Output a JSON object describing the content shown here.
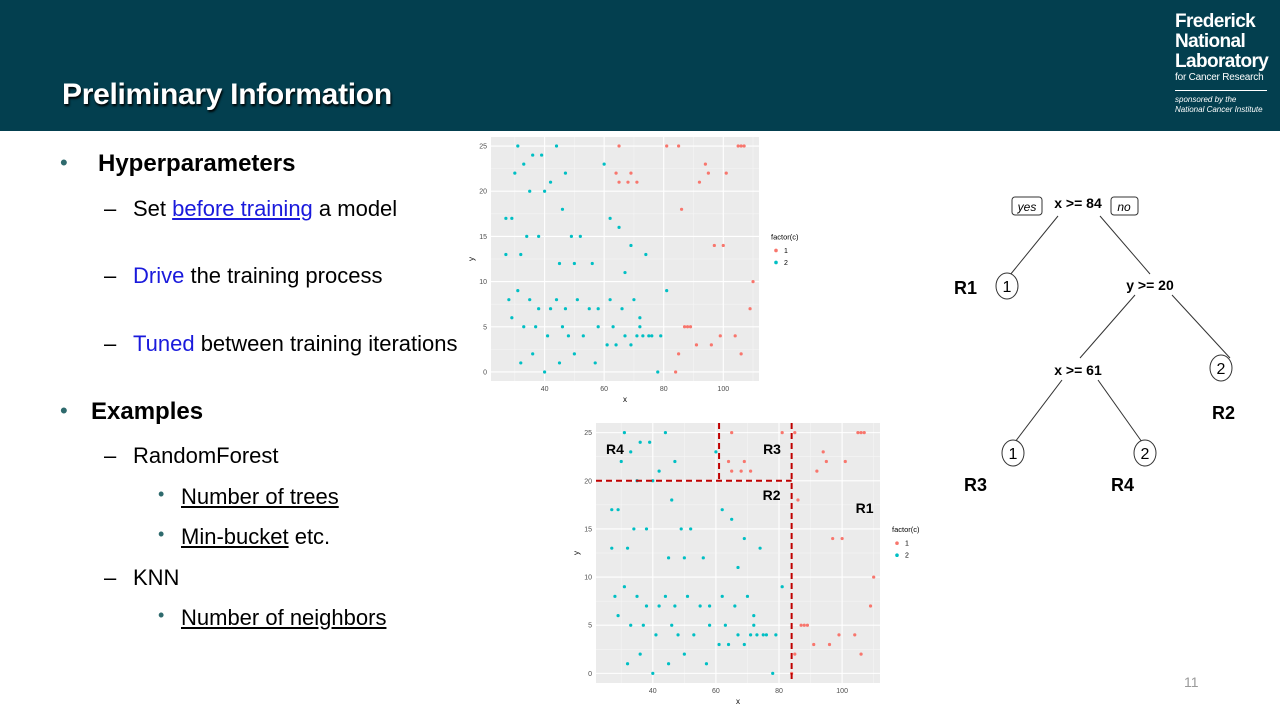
{
  "slide": {
    "title": "Preliminary Information",
    "page_number": "11"
  },
  "logo": {
    "line1": "Frederick",
    "line2": "National",
    "line3": "Laboratory",
    "line4": "for Cancer Research",
    "line5": "sponsored by the",
    "line6": "National Cancer Institute"
  },
  "bullets": {
    "hyper_title": "Hyperparameters",
    "set_pre": "Set ",
    "set_link": "before training",
    "set_post": " a model",
    "drive_word": "Drive",
    "drive_rest": " the training process",
    "tuned_word": "Tuned",
    "tuned_rest": " between training iterations",
    "examples_title": "Examples",
    "rf": "RandomForest",
    "rf_trees": "Number of trees",
    "rf_min": "Min-bucket",
    "rf_min_post": " etc.",
    "knn": "KNN",
    "knn_neighbors": "Number of neighbors"
  },
  "tree": {
    "root": "x >= 84",
    "yes": "yes",
    "no": "no",
    "node2": "y >= 20",
    "node3": "x >= 61",
    "leaf_r1": "1",
    "leaf_r2": "2",
    "leaf_r3": "1",
    "leaf_r4": "2",
    "label_r1": "R1",
    "label_r2": "R2",
    "label_r3": "R3",
    "label_r4": "R4"
  },
  "colors": {
    "header": "#033f4f",
    "class1": "#f8766d",
    "class2": "#00bfc4",
    "panel": "#ebebeb",
    "split": "#c00000"
  },
  "chart_data": [
    {
      "type": "scatter",
      "xlabel": "x",
      "ylabel": "y",
      "xlim": [
        22,
        112
      ],
      "ylim": [
        -1,
        26
      ],
      "xticks": [
        "40",
        "60",
        "80",
        "100"
      ],
      "yticks": [
        "0",
        "5",
        "10",
        "15",
        "20",
        "25"
      ],
      "legend_title": "factor(c)",
      "legend": [
        "1",
        "2"
      ],
      "grid": true,
      "series": [
        {
          "name": "1",
          "points": [
            [
              65,
              25
            ],
            [
              81,
              25
            ],
            [
              85,
              25
            ],
            [
              105,
              25
            ],
            [
              106,
              25
            ],
            [
              107,
              25
            ],
            [
              64,
              22
            ],
            [
              69,
              22
            ],
            [
              94,
              23
            ],
            [
              95,
              22
            ],
            [
              101,
              22
            ],
            [
              65,
              21
            ],
            [
              68,
              21
            ],
            [
              71,
              21
            ],
            [
              92,
              21
            ],
            [
              86,
              18
            ],
            [
              97,
              14
            ],
            [
              100,
              14
            ],
            [
              110,
              10
            ],
            [
              109,
              7
            ],
            [
              87,
              5
            ],
            [
              88,
              5
            ],
            [
              89,
              5
            ],
            [
              91,
              3
            ],
            [
              96,
              3
            ],
            [
              99,
              4
            ],
            [
              104,
              4
            ],
            [
              85,
              2
            ],
            [
              106,
              2
            ],
            [
              84,
              0
            ]
          ]
        },
        {
          "name": "2",
          "points": [
            [
              27,
              17
            ],
            [
              29,
              17
            ],
            [
              31,
              25
            ],
            [
              33,
              23
            ],
            [
              36,
              24
            ],
            [
              39,
              24
            ],
            [
              44,
              25
            ],
            [
              47,
              22
            ],
            [
              30,
              22
            ],
            [
              35,
              20
            ],
            [
              40,
              20
            ],
            [
              42,
              21
            ],
            [
              46,
              18
            ],
            [
              34,
              15
            ],
            [
              38,
              15
            ],
            [
              49,
              15
            ],
            [
              52,
              15
            ],
            [
              60,
              23
            ],
            [
              27,
              13
            ],
            [
              32,
              13
            ],
            [
              45,
              12
            ],
            [
              50,
              12
            ],
            [
              56,
              12
            ],
            [
              62,
              17
            ],
            [
              65,
              16
            ],
            [
              69,
              14
            ],
            [
              74,
              13
            ],
            [
              28,
              8
            ],
            [
              31,
              9
            ],
            [
              35,
              8
            ],
            [
              38,
              7
            ],
            [
              42,
              7
            ],
            [
              44,
              8
            ],
            [
              47,
              7
            ],
            [
              51,
              8
            ],
            [
              55,
              7
            ],
            [
              58,
              7
            ],
            [
              62,
              8
            ],
            [
              66,
              7
            ],
            [
              70,
              8
            ],
            [
              72,
              6
            ],
            [
              29,
              6
            ],
            [
              33,
              5
            ],
            [
              37,
              5
            ],
            [
              41,
              4
            ],
            [
              46,
              5
            ],
            [
              48,
              4
            ],
            [
              53,
              4
            ],
            [
              58,
              5
            ],
            [
              63,
              5
            ],
            [
              67,
              4
            ],
            [
              71,
              4
            ],
            [
              75,
              4
            ],
            [
              79,
              4
            ],
            [
              32,
              1
            ],
            [
              36,
              2
            ],
            [
              40,
              0
            ],
            [
              45,
              1
            ],
            [
              50,
              2
            ],
            [
              57,
              1
            ],
            [
              61,
              3
            ],
            [
              64,
              3
            ],
            [
              69,
              3
            ],
            [
              73,
              4
            ],
            [
              78,
              0
            ],
            [
              81,
              9
            ],
            [
              67,
              11
            ],
            [
              76,
              4
            ],
            [
              72,
              5
            ]
          ]
        }
      ]
    },
    {
      "type": "scatter",
      "xlabel": "x",
      "ylabel": "y",
      "xlim": [
        22,
        112
      ],
      "ylim": [
        -1,
        26
      ],
      "xticks": [
        "40",
        "60",
        "80",
        "100"
      ],
      "yticks": [
        "0",
        "5",
        "10",
        "15",
        "20",
        "25"
      ],
      "legend_title": "factor(c)",
      "legend": [
        "1",
        "2"
      ],
      "grid": true,
      "splits": {
        "x_84": 84,
        "y_20": 20,
        "x_61": 61
      },
      "region_labels": [
        "R4",
        "R3",
        "R2",
        "R1"
      ]
    }
  ]
}
